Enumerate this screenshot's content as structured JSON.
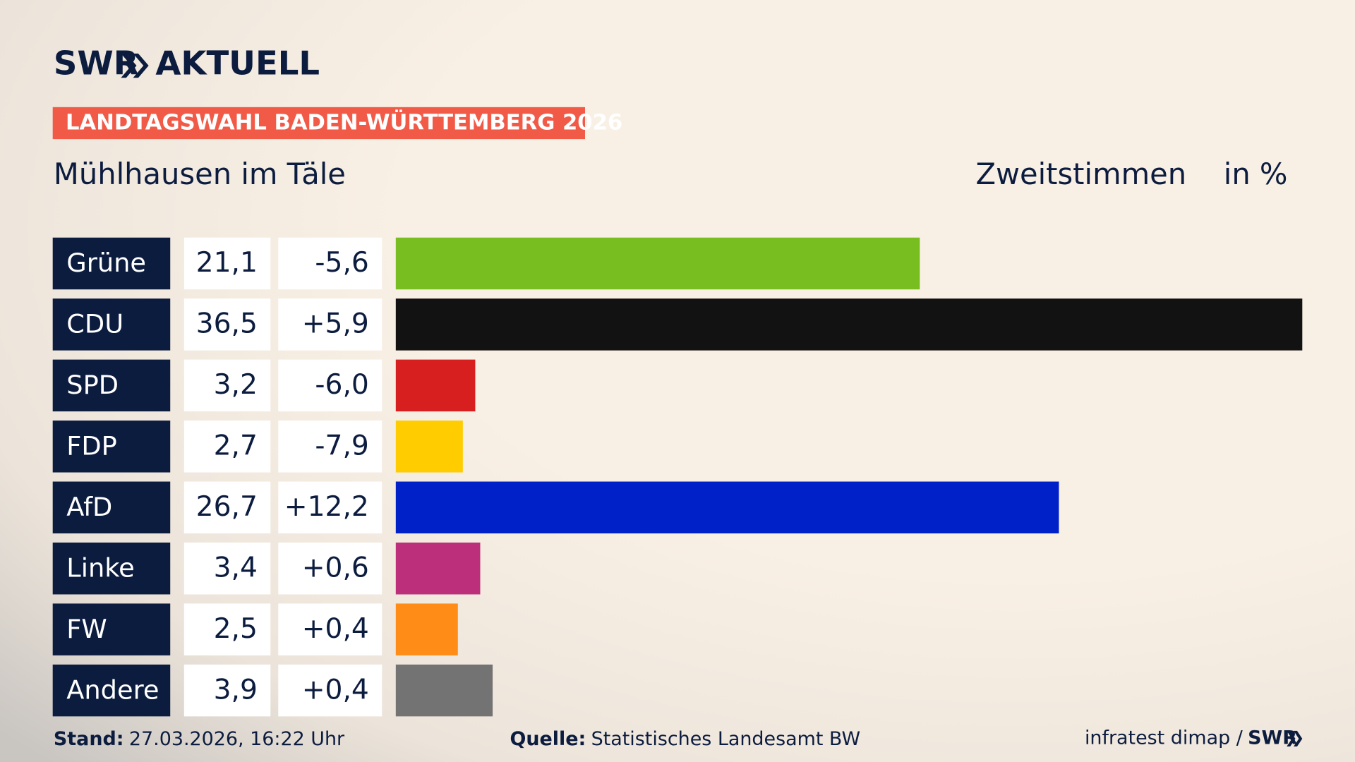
{
  "brand": {
    "name": "SWR",
    "product": "AKTUELL"
  },
  "chart_data": {
    "type": "hbar",
    "title": "LANDTAGSWAHL BADEN-WÜRTTEMBERG 2026",
    "subtitle": "Mühlhausen im Täle",
    "measure": "Zweitstimmen",
    "unit": "in %",
    "categories": [
      "Grüne",
      "CDU",
      "SPD",
      "FDP",
      "AfD",
      "Linke",
      "FW",
      "Andere"
    ],
    "values": [
      21.1,
      36.5,
      3.2,
      2.7,
      26.7,
      3.4,
      2.5,
      3.9
    ],
    "value_labels": [
      "21,1",
      "36,5",
      "3,2",
      "2,7",
      "26,7",
      "3,4",
      "2,5",
      "3,9"
    ],
    "changes": [
      -5.6,
      5.9,
      -6.0,
      -7.9,
      12.2,
      0.6,
      0.4,
      0.4
    ],
    "change_labels": [
      "-5,6",
      "+5,9",
      "-6,0",
      "-7,9",
      "+12,2",
      "+0,6",
      "+0,4",
      "+0,4"
    ],
    "colors": [
      "#78be20",
      "#121212",
      "#d71f1f",
      "#ffcc00",
      "#0021c7",
      "#bc2f7a",
      "#ff8c16",
      "#737373"
    ]
  },
  "footer": {
    "stand_label": "Stand:",
    "stand": "27.03.2026, 16:22 Uhr",
    "source_label": "Quelle:",
    "source": "Statistisches Landesamt BW",
    "credit": "infratest dimap /",
    "credit_brand": "SWR"
  }
}
